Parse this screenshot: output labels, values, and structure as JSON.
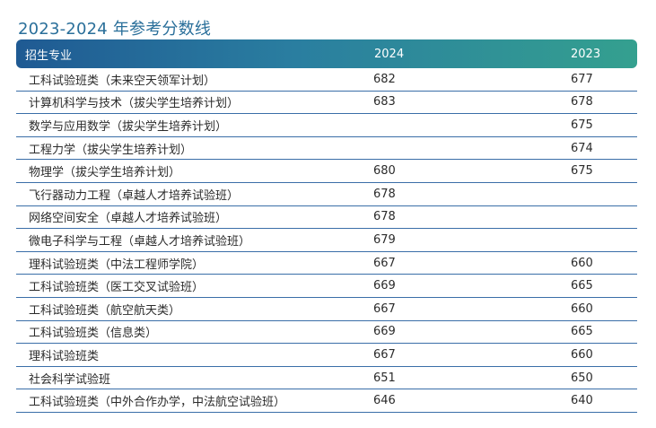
{
  "title": "2023-2024 年参考分数线",
  "table": {
    "headers": {
      "major": "招生专业",
      "y2024": "2024",
      "y2023": "2023"
    },
    "rows": [
      {
        "major": "工科试验班类（未来空天领军计划）",
        "y2024": "682",
        "y2023": "677"
      },
      {
        "major": "计算机科学与技术（拔尖学生培养计划）",
        "y2024": "683",
        "y2023": "678"
      },
      {
        "major": "数学与应用数学（拔尖学生培养计划）",
        "y2024": "",
        "y2023": "675"
      },
      {
        "major": "工程力学（拔尖学生培养计划）",
        "y2024": "",
        "y2023": "674"
      },
      {
        "major": "物理学（拔尖学生培养计划）",
        "y2024": "680",
        "y2023": "675"
      },
      {
        "major": "飞行器动力工程（卓越人才培养试验班）",
        "y2024": "678",
        "y2023": ""
      },
      {
        "major": "网络空间安全（卓越人才培养试验班）",
        "y2024": "678",
        "y2023": ""
      },
      {
        "major": "微电子科学与工程（卓越人才培养试验班）",
        "y2024": "679",
        "y2023": ""
      },
      {
        "major": "理科试验班类（中法工程师学院）",
        "y2024": "667",
        "y2023": "660"
      },
      {
        "major": "工科试验班类（医工交叉试验班）",
        "y2024": "669",
        "y2023": "665"
      },
      {
        "major": "工科试验班类（航空航天类）",
        "y2024": "667",
        "y2023": "660"
      },
      {
        "major": "工科试验班类（信息类）",
        "y2024": "669",
        "y2023": "665"
      },
      {
        "major": "理科试验班类",
        "y2024": "667",
        "y2023": "660"
      },
      {
        "major": "社会科学试验班",
        "y2024": "651",
        "y2023": "650"
      },
      {
        "major": "工科试验班类（中外合作办学，中法航空试验班）",
        "y2024": "646",
        "y2023": "640"
      }
    ]
  },
  "colors": {
    "title": "#2a6f9a",
    "header_gradient_start": "#1f5a93",
    "header_gradient_end": "#34a08f",
    "row_divider": "#3a6ea8"
  }
}
